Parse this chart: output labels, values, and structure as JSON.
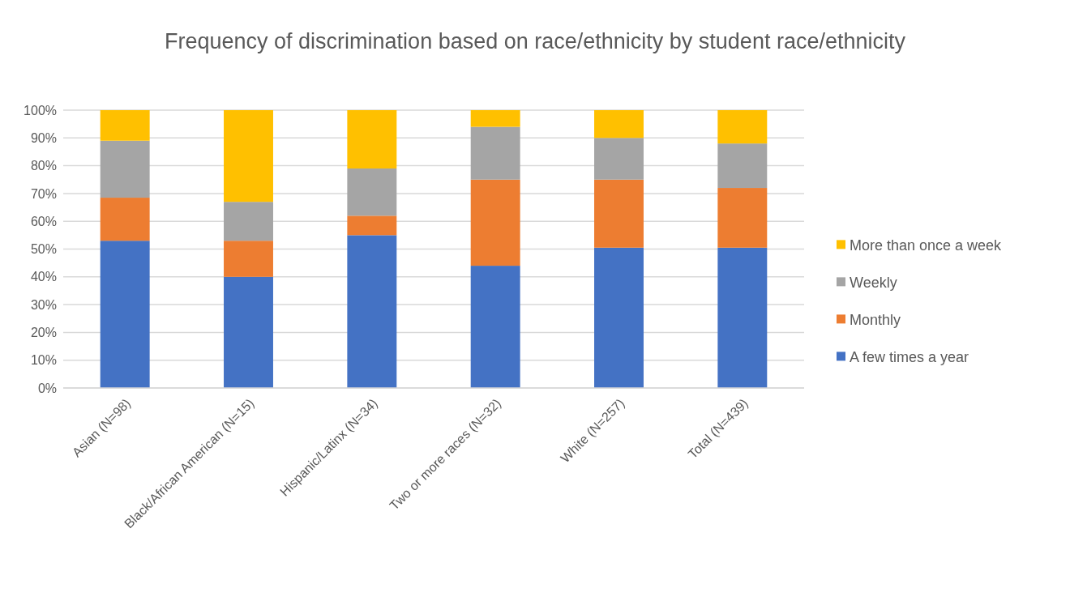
{
  "chart_data": {
    "type": "bar",
    "stacked": true,
    "title": "Frequency of discrimination based on race/ethnicity by student race/ethnicity",
    "categories": [
      "Asian (N=98)",
      "Black/African American (N=15)",
      "Hispanic/Latinx (N=34)",
      "Two or more races (N=32)",
      "White (N=257)",
      "Total (N=439)"
    ],
    "series": [
      {
        "name": "A few times a year",
        "color": "#4472c4",
        "values": [
          53,
          40,
          55,
          44,
          50.5,
          50.5
        ]
      },
      {
        "name": "Monthly",
        "color": "#ed7d31",
        "values": [
          15.5,
          13,
          7,
          31,
          24.5,
          21.5
        ]
      },
      {
        "name": "Weekly",
        "color": "#a5a5a5",
        "values": [
          20.5,
          14,
          17,
          19,
          15,
          16
        ]
      },
      {
        "name": "More than once a week",
        "color": "#ffc000",
        "values": [
          11,
          33,
          21,
          6,
          10,
          12
        ]
      }
    ],
    "ylim": [
      0,
      100
    ],
    "yticks": [
      {
        "value": 0,
        "label": "0%"
      },
      {
        "value": 10,
        "label": "10%"
      },
      {
        "value": 20,
        "label": "20%"
      },
      {
        "value": 30,
        "label": "30%"
      },
      {
        "value": 40,
        "label": "40%"
      },
      {
        "value": 50,
        "label": "50%"
      },
      {
        "value": 60,
        "label": "60%"
      },
      {
        "value": 70,
        "label": "70%"
      },
      {
        "value": 80,
        "label": "80%"
      },
      {
        "value": 90,
        "label": "90%"
      },
      {
        "value": 100,
        "label": "100%"
      }
    ],
    "grid": "y",
    "legend": "right"
  }
}
